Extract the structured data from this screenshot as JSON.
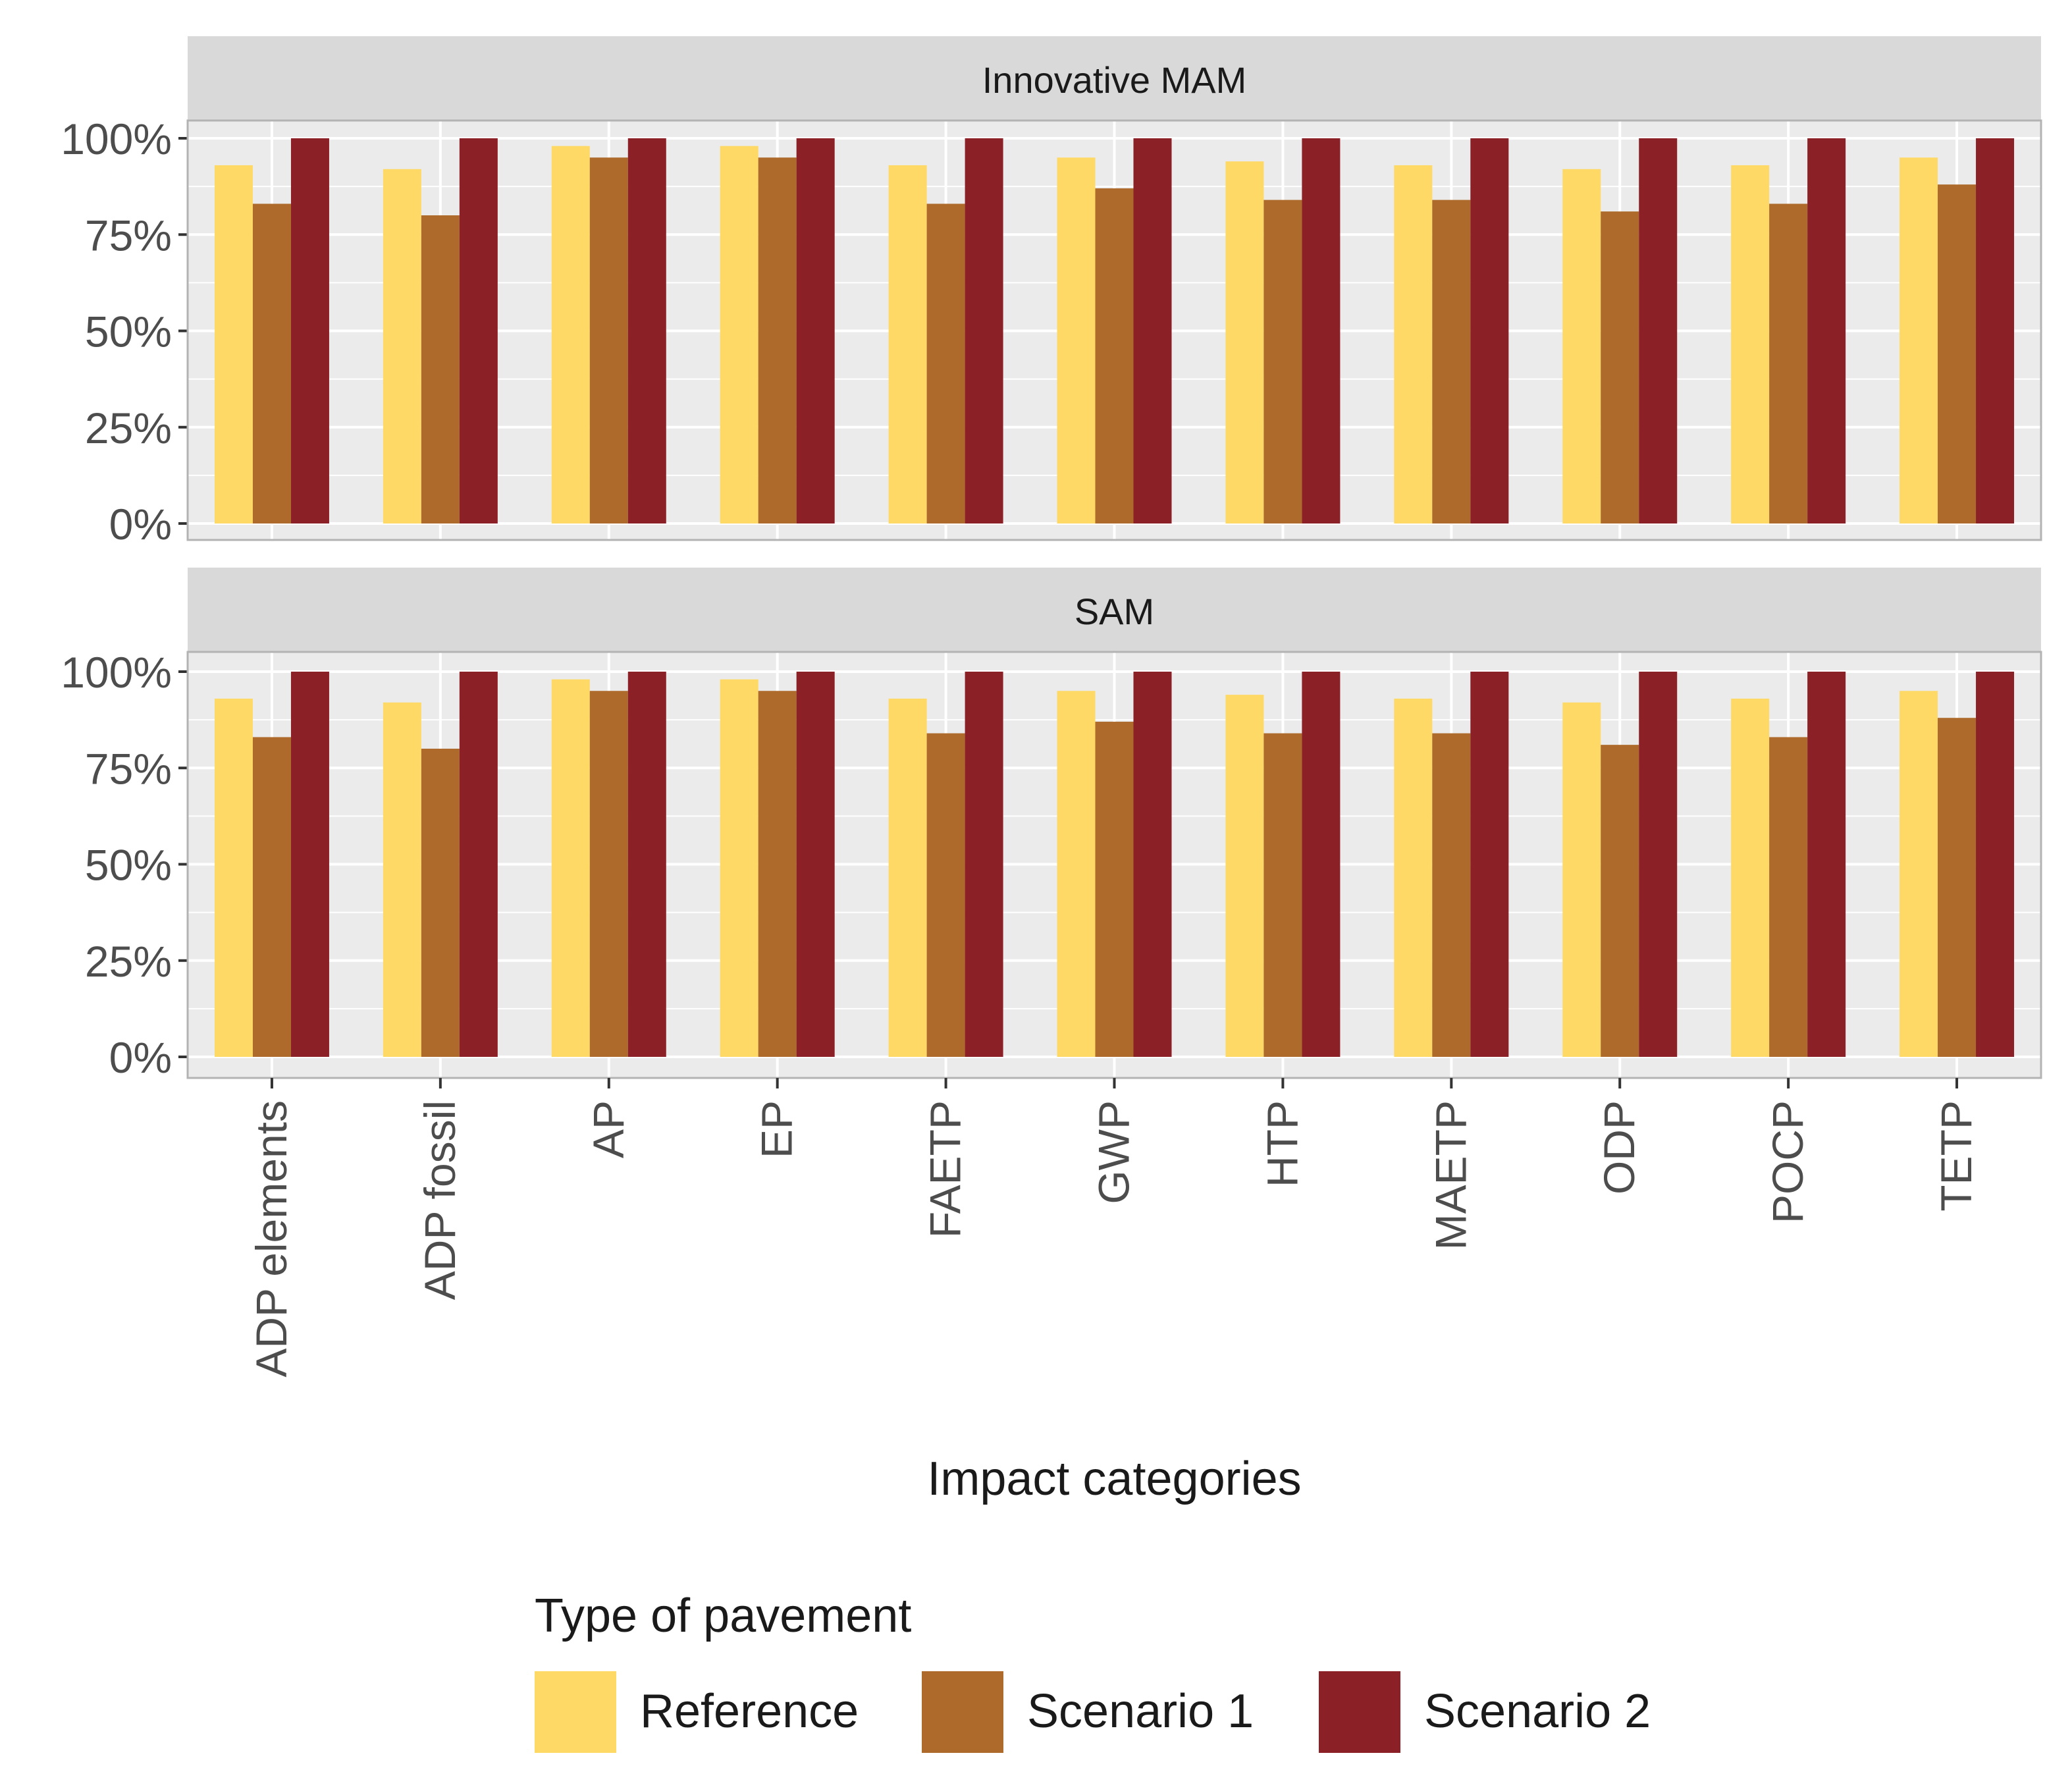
{
  "chart_data": {
    "type": "bar",
    "facets": [
      {
        "strip_label": "Innovative MAM",
        "series": [
          {
            "name": "Reference",
            "values": [
              93,
              92,
              98,
              98,
              93,
              95,
              94,
              93,
              92,
              93,
              95
            ]
          },
          {
            "name": "Scenario 1",
            "values": [
              83,
              80,
              95,
              95,
              83,
              87,
              84,
              84,
              81,
              83,
              88
            ]
          },
          {
            "name": "Scenario 2",
            "values": [
              100,
              100,
              100,
              100,
              100,
              100,
              100,
              100,
              100,
              100,
              100
            ]
          }
        ]
      },
      {
        "strip_label": "SAM",
        "series": [
          {
            "name": "Reference",
            "values": [
              93,
              92,
              98,
              98,
              93,
              95,
              94,
              93,
              92,
              93,
              95
            ]
          },
          {
            "name": "Scenario 1",
            "values": [
              83,
              80,
              95,
              95,
              84,
              87,
              84,
              84,
              81,
              83,
              88
            ]
          },
          {
            "name": "Scenario 2",
            "values": [
              100,
              100,
              100,
              100,
              100,
              100,
              100,
              100,
              100,
              100,
              100
            ]
          }
        ]
      }
    ],
    "categories": [
      "ADP elements",
      "ADP fossil",
      "AP",
      "EP",
      "FAETP",
      "GWP",
      "HTP",
      "MAETP",
      "ODP",
      "POCP",
      "TETP"
    ],
    "xlabel": "Impact categories",
    "ylabel": "",
    "ylim": [
      0,
      100
    ],
    "y_ticks": [
      {
        "value": 0,
        "label": "0%"
      },
      {
        "value": 25,
        "label": "25%"
      },
      {
        "value": 50,
        "label": "50%"
      },
      {
        "value": 75,
        "label": "75%"
      },
      {
        "value": 100,
        "label": "100%"
      }
    ],
    "colors": {
      "Reference": "#FFD966",
      "Scenario 1": "#AD6A2A",
      "Scenario 2": "#8B2027"
    },
    "panel_background": "#EBEBEB",
    "strip_background": "#D9D9D9",
    "grid": true,
    "legend": {
      "title": "Type of pavement",
      "position": "bottom"
    }
  }
}
